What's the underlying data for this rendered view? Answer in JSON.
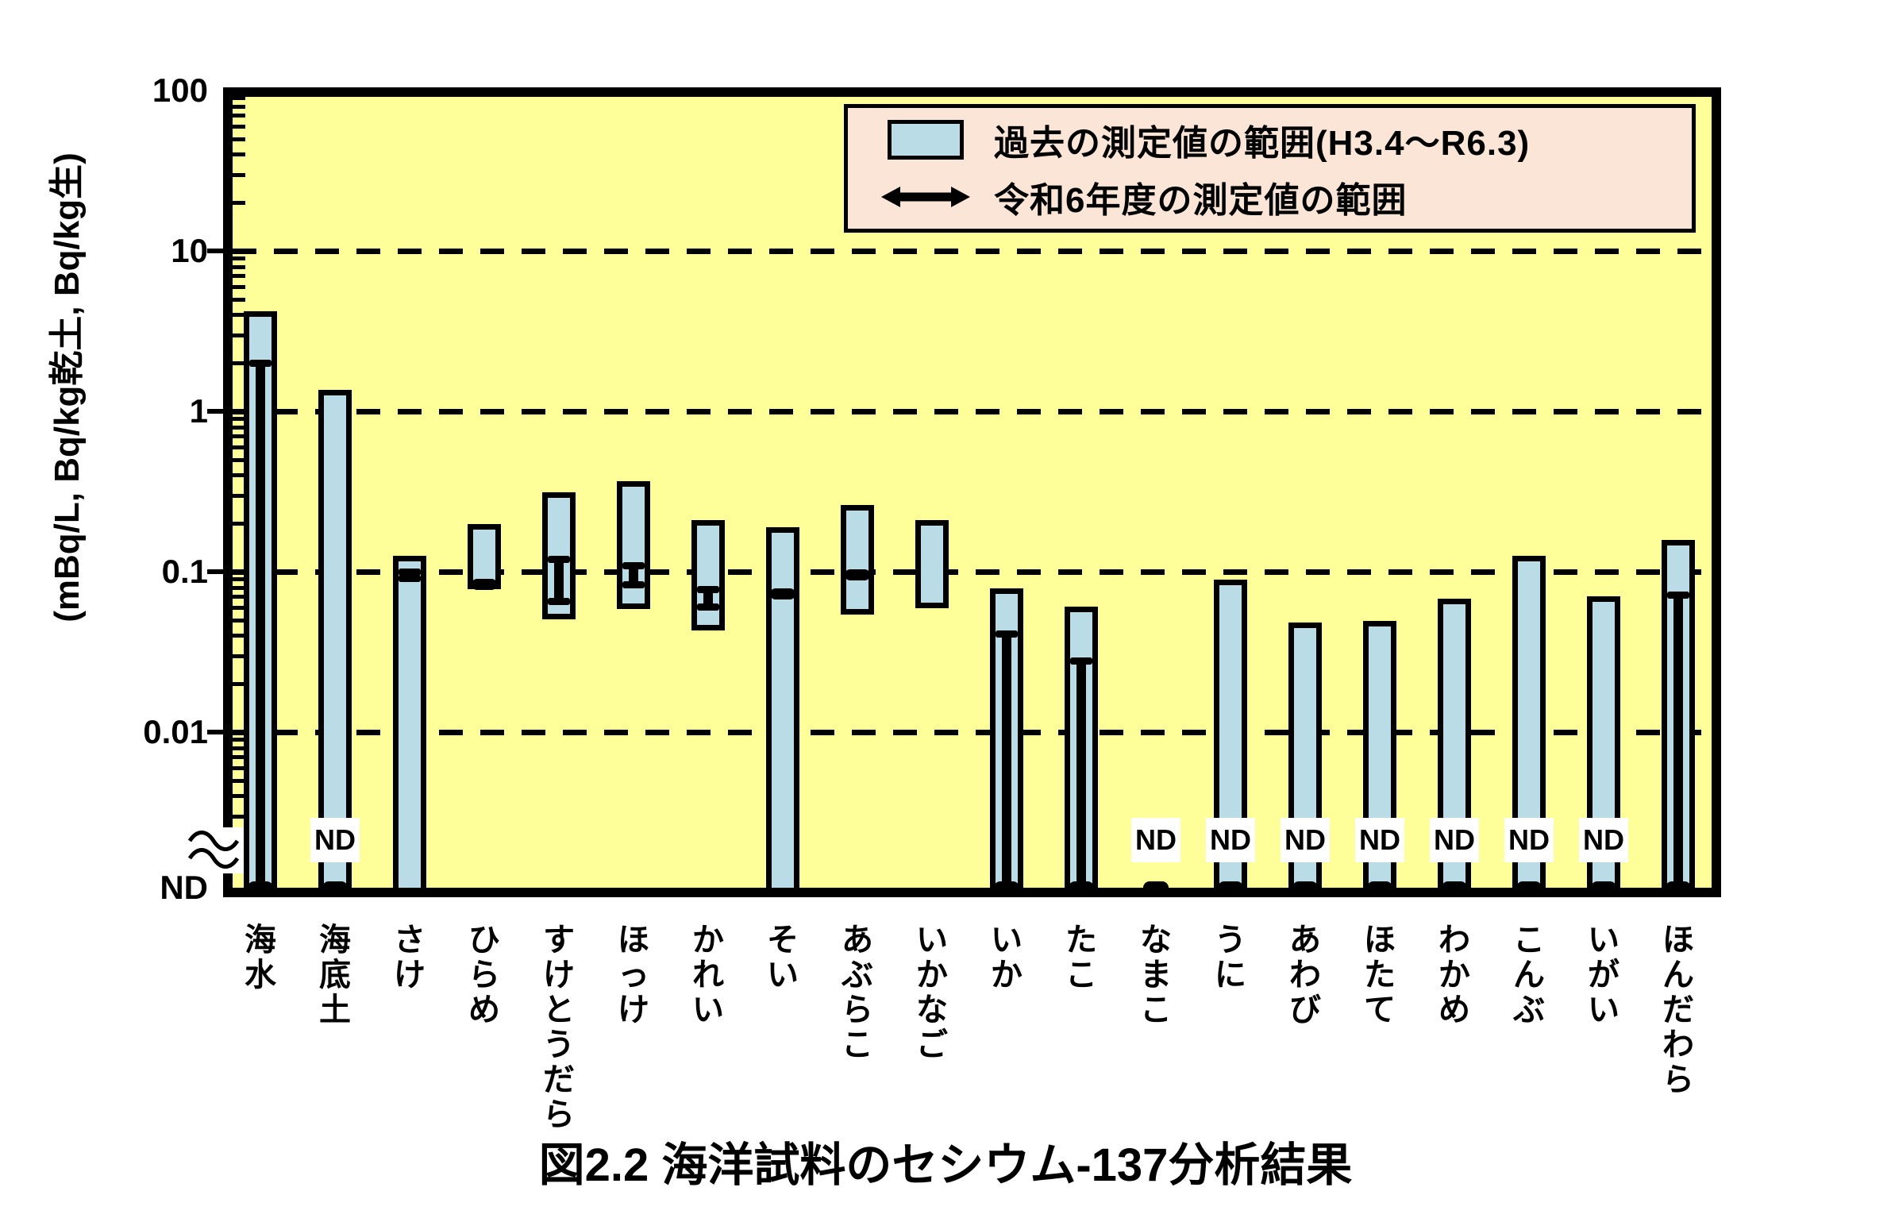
{
  "title": "図2.2 海洋試料のセシウム-137分析結果",
  "y_axis": {
    "unit_label": "(mBq/L, Bq/kg乾土, Bq/kg生)",
    "ticks": [
      {
        "label": "100",
        "value": 100
      },
      {
        "label": "10",
        "value": 10
      },
      {
        "label": "1",
        "value": 1
      },
      {
        "label": "0.1",
        "value": 0.1
      },
      {
        "label": "0.01",
        "value": 0.01
      },
      {
        "label": "ND",
        "value": "ND"
      }
    ]
  },
  "legend": {
    "past_label": "過去の測定値の範囲(H3.4～R6.3)",
    "current_label": "令和6年度の測定値の範囲"
  },
  "colors": {
    "plot_bg": "#FFFF99",
    "bar_fill": "#B9DCE7",
    "bar_border": "#000000",
    "legend_bg": "#FBE5D6",
    "marker": "#000000",
    "nd_label_bg": "#FFFFFF"
  },
  "chart_data": {
    "type": "bar",
    "subtype": "floating-range-bars-with-errorbars",
    "y_scale": "log",
    "ylim": [
      "ND",
      100
    ],
    "grid": "dashed-horizontal",
    "grid_values": [
      10,
      1,
      0.1,
      0.01
    ],
    "legend_position": "top-right-inside",
    "nd_note": "ND = not detected, plotted below axis break",
    "categories": [
      "海水",
      "海底土",
      "さけ",
      "ひらめ",
      "すけとうだら",
      "ほっけ",
      "かれい",
      "そい",
      "あぶらこ",
      "いかなご",
      "いか",
      "たこ",
      "なまこ",
      "うに",
      "あわび",
      "ほたて",
      "わかめ",
      "こんぶ",
      "いがい",
      "ほんだわら"
    ],
    "series": [
      {
        "name": "過去の測定値の範囲(H3.4～R6.3)",
        "mark": "bar",
        "ranges": [
          [
            "ND",
            4.0
          ],
          [
            "ND",
            1.3
          ],
          [
            "ND",
            0.12
          ],
          [
            0.085,
            0.19
          ],
          [
            0.055,
            0.3
          ],
          [
            0.064,
            0.35
          ],
          [
            0.047,
            0.2
          ],
          [
            "ND",
            0.18
          ],
          [
            0.059,
            0.25
          ],
          [
            0.065,
            0.2
          ],
          [
            "ND",
            0.075
          ],
          [
            "ND",
            0.058
          ],
          null,
          [
            "ND",
            0.085
          ],
          [
            "ND",
            0.046
          ],
          [
            "ND",
            0.047
          ],
          [
            "ND",
            0.065
          ],
          [
            "ND",
            0.12
          ],
          [
            "ND",
            0.067
          ],
          [
            "ND",
            0.15
          ]
        ]
      },
      {
        "name": "令和6年度の測定値の範囲",
        "mark": "errorbar",
        "ranges": [
          [
            "ND",
            2.0
          ],
          [
            "ND",
            "ND"
          ],
          [
            0.09,
            0.1
          ],
          [
            0.083,
            0.083
          ],
          [
            0.065,
            0.12
          ],
          [
            0.082,
            0.11
          ],
          [
            0.06,
            0.078
          ],
          [
            0.073,
            0.073
          ],
          [
            0.095,
            0.095
          ],
          null,
          [
            "ND",
            0.041
          ],
          [
            "ND",
            0.028
          ],
          [
            "ND",
            "ND"
          ],
          [
            "ND",
            "ND"
          ],
          [
            "ND",
            "ND"
          ],
          [
            "ND",
            "ND"
          ],
          [
            "ND",
            "ND"
          ],
          [
            "ND",
            "ND"
          ],
          [
            "ND",
            "ND"
          ],
          [
            "ND",
            0.072
          ]
        ]
      }
    ],
    "nd_text_labels": [
      false,
      true,
      false,
      false,
      false,
      false,
      false,
      false,
      false,
      false,
      false,
      false,
      true,
      true,
      true,
      true,
      true,
      true,
      true,
      false
    ]
  }
}
